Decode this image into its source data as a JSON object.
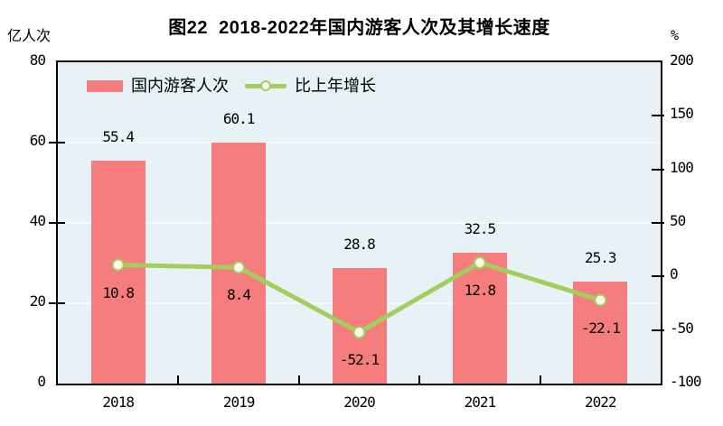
{
  "chart_data": {
    "type": "combo",
    "title": "图22  2018-2022年国内游客人次及其增长速度",
    "categories": [
      "2018",
      "2019",
      "2020",
      "2021",
      "2022"
    ],
    "series": [
      {
        "name": "国内游客人次",
        "type": "bar",
        "axis": "left",
        "unit": "亿人次",
        "values": [
          55.4,
          60.1,
          28.8,
          32.5,
          25.3
        ]
      },
      {
        "name": "比上年增长",
        "type": "line",
        "axis": "right",
        "unit": "%",
        "values": [
          10.8,
          8.4,
          -52.1,
          12.8,
          -22.1
        ]
      }
    ],
    "left_axis": {
      "label": "亿人次",
      "min": 0,
      "max": 80,
      "ticks": [
        0,
        20,
        40,
        60,
        80
      ]
    },
    "right_axis": {
      "label": "%",
      "min": -100,
      "max": 200,
      "ticks": [
        -100,
        -50,
        0,
        50,
        100,
        150,
        200
      ]
    },
    "grid": true,
    "gridlines_at_left_values": [
      20,
      40,
      60
    ],
    "legend_position": "top-left-inside",
    "data_labels": true
  },
  "colors": {
    "bar": "#f57d7d",
    "line": "#a3ce5e",
    "marker_fill": "#fcfcec",
    "plot_bg": "#e8f1f5",
    "grid": "#f6fafc",
    "axis": "#000000",
    "text": "#000000",
    "background": "#ffffff"
  }
}
